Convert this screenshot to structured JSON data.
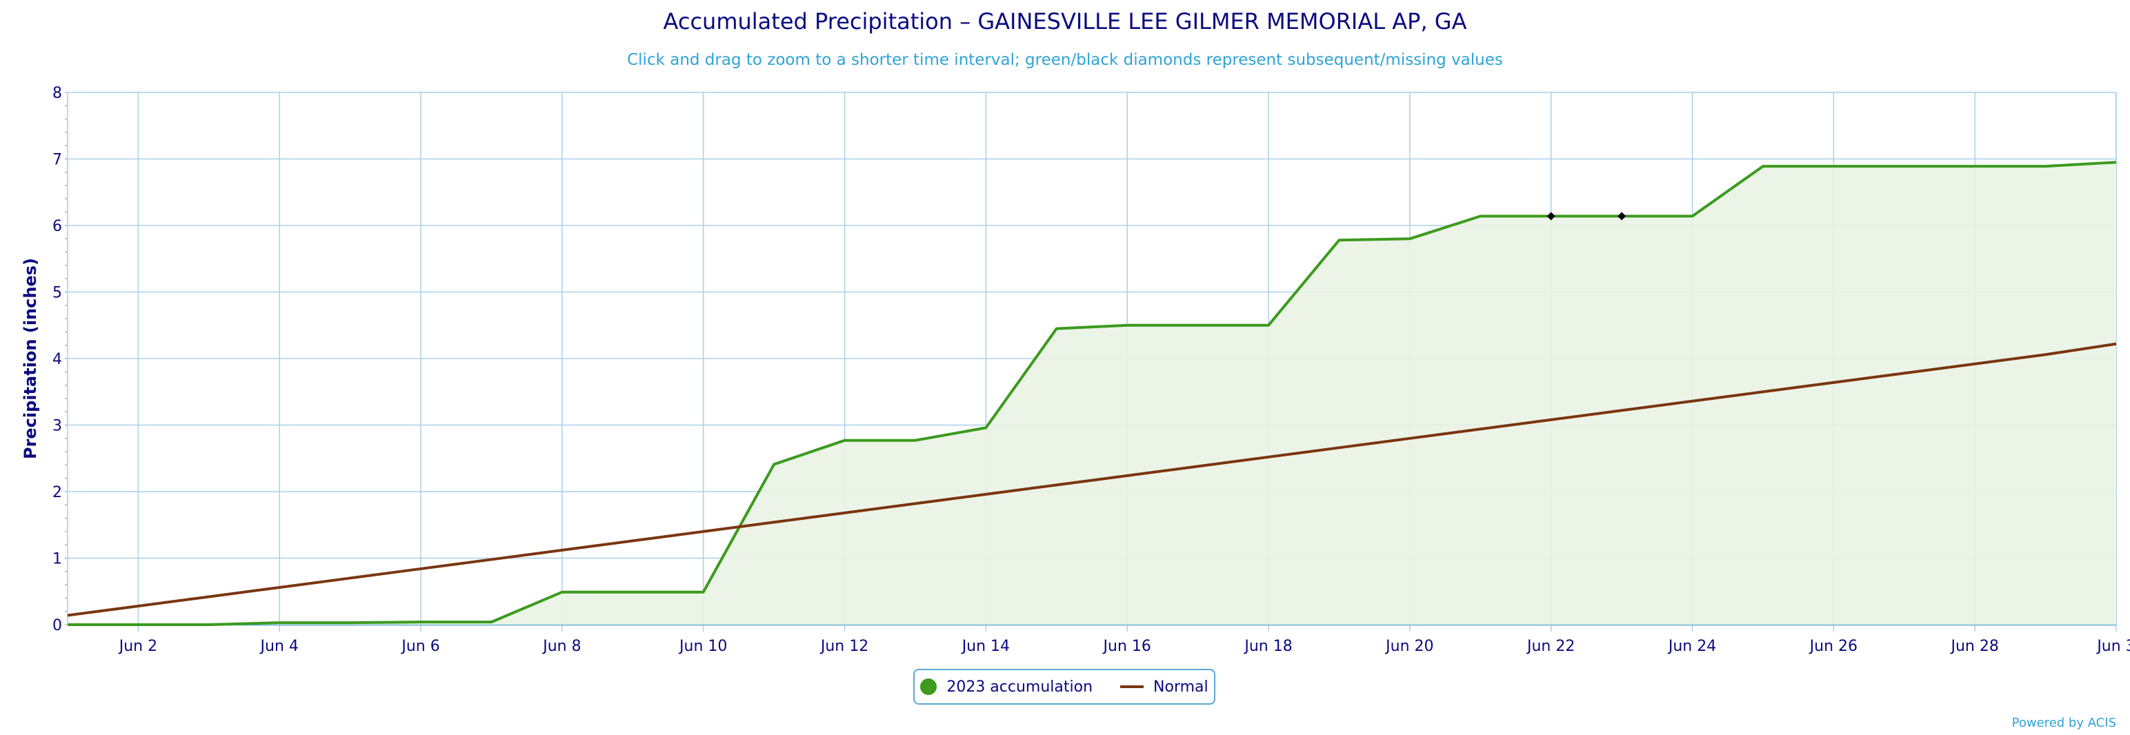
{
  "title": "Accumulated Precipitation – GAINESVILLE LEE GILMER MEMORIAL AP, GA",
  "subtitle": "Click and drag to zoom to a shorter time interval; green/black diamonds represent subsequent/missing values",
  "credit": "Powered by ACIS",
  "colors": {
    "accumulation": "#3c9a1e",
    "accumulation_fill": "#e9f3e3",
    "normal": "#7a3510",
    "grid": "#a9d0ea",
    "axis_text": "#0a0a80",
    "missing_marker": "#000000"
  },
  "chart_data": {
    "type": "area",
    "title": "Accumulated Precipitation – GAINESVILLE LEE GILMER MEMORIAL AP, GA",
    "subtitle": "Click and drag to zoom to a shorter time interval; green/black diamonds represent subsequent/missing values",
    "ylabel": "Precipitation (inches)",
    "xlabel": "",
    "ylim": [
      0,
      8
    ],
    "yticks": [
      "0",
      "1",
      "2",
      "3",
      "4",
      "5",
      "6",
      "7",
      "8"
    ],
    "xticks": [
      "Jun 2",
      "Jun 4",
      "Jun 6",
      "Jun 8",
      "Jun 10",
      "Jun 12",
      "Jun 14",
      "Jun 16",
      "Jun 18",
      "Jun 20",
      "Jun 22",
      "Jun 24",
      "Jun 26",
      "Jun 28",
      "Jun 3"
    ],
    "grid": true,
    "legend_position": "bottom-center",
    "x": [
      "Jun 1",
      "Jun 2",
      "Jun 3",
      "Jun 4",
      "Jun 5",
      "Jun 6",
      "Jun 7",
      "Jun 8",
      "Jun 9",
      "Jun 10",
      "Jun 11",
      "Jun 12",
      "Jun 13",
      "Jun 14",
      "Jun 15",
      "Jun 16",
      "Jun 17",
      "Jun 18",
      "Jun 19",
      "Jun 20",
      "Jun 21",
      "Jun 22",
      "Jun 23",
      "Jun 24",
      "Jun 25",
      "Jun 26",
      "Jun 27",
      "Jun 28",
      "Jun 29",
      "Jun 30"
    ],
    "series": [
      {
        "name": "2023 accumulation",
        "values": [
          0,
          0,
          0,
          0.03,
          0.03,
          0.04,
          0.04,
          0.49,
          0.49,
          0.49,
          2.41,
          2.77,
          2.77,
          2.96,
          4.45,
          4.5,
          4.5,
          4.5,
          5.78,
          5.8,
          6.14,
          6.14,
          6.14,
          6.14,
          6.89,
          6.89,
          6.89,
          6.89,
          6.89,
          6.95
        ],
        "missing_markers": [
          "Jun 22",
          "Jun 23"
        ]
      },
      {
        "name": "Normal",
        "values": [
          0.14,
          0.28,
          0.42,
          0.56,
          0.7,
          0.84,
          0.98,
          1.12,
          1.26,
          1.4,
          1.54,
          1.68,
          1.82,
          1.96,
          2.1,
          2.24,
          2.38,
          2.52,
          2.66,
          2.8,
          2.94,
          3.08,
          3.22,
          3.36,
          3.5,
          3.64,
          3.78,
          3.92,
          4.06,
          4.22
        ]
      }
    ]
  }
}
